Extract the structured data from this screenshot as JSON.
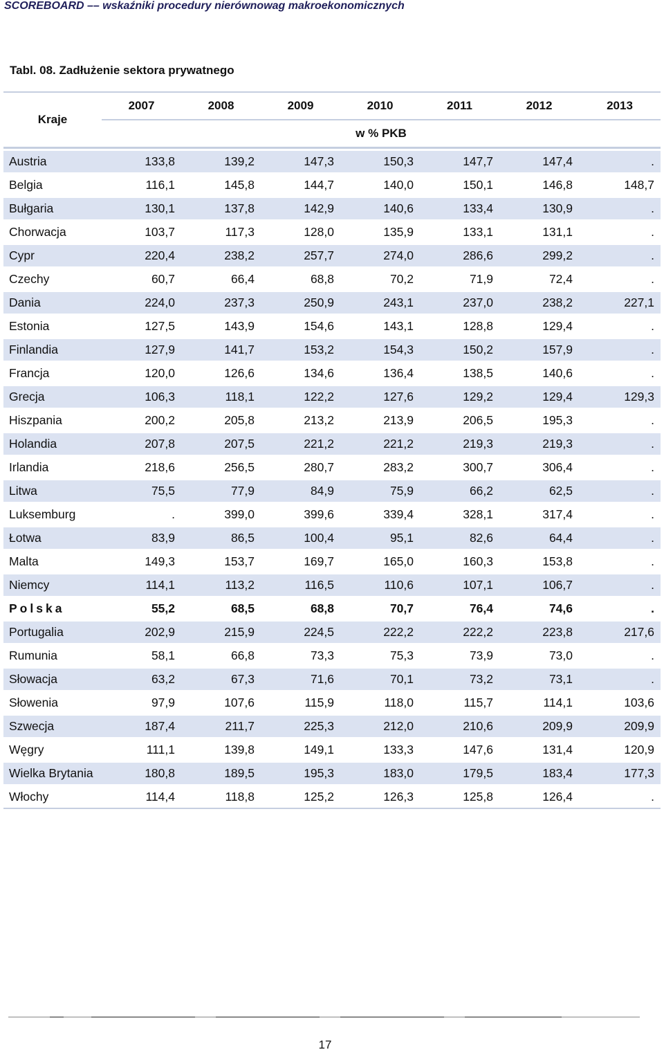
{
  "header": {
    "text": "SCOREBOARD –– wskaźniki procedury nierównowag makroekonomicznych"
  },
  "table": {
    "title": "Tabl. 08. Zadłużenie sektora prywatnego",
    "col_header_label": "Kraje",
    "unit": "w % PKB",
    "years": [
      "2007",
      "2008",
      "2009",
      "2010",
      "2011",
      "2012",
      "2013"
    ],
    "rows": [
      {
        "country": "Austria",
        "values": [
          "133,8",
          "139,2",
          "147,3",
          "150,3",
          "147,7",
          "147,4",
          "."
        ]
      },
      {
        "country": "Belgia",
        "values": [
          "116,1",
          "145,8",
          "144,7",
          "140,0",
          "150,1",
          "146,8",
          "148,7"
        ]
      },
      {
        "country": "Bułgaria",
        "values": [
          "130,1",
          "137,8",
          "142,9",
          "140,6",
          "133,4",
          "130,9",
          "."
        ]
      },
      {
        "country": "Chorwacja",
        "values": [
          "103,7",
          "117,3",
          "128,0",
          "135,9",
          "133,1",
          "131,1",
          "."
        ]
      },
      {
        "country": "Cypr",
        "values": [
          "220,4",
          "238,2",
          "257,7",
          "274,0",
          "286,6",
          "299,2",
          "."
        ]
      },
      {
        "country": "Czechy",
        "values": [
          "60,7",
          "66,4",
          "68,8",
          "70,2",
          "71,9",
          "72,4",
          "."
        ]
      },
      {
        "country": "Dania",
        "values": [
          "224,0",
          "237,3",
          "250,9",
          "243,1",
          "237,0",
          "238,2",
          "227,1"
        ]
      },
      {
        "country": "Estonia",
        "values": [
          "127,5",
          "143,9",
          "154,6",
          "143,1",
          "128,8",
          "129,4",
          "."
        ]
      },
      {
        "country": "Finlandia",
        "values": [
          "127,9",
          "141,7",
          "153,2",
          "154,3",
          "150,2",
          "157,9",
          "."
        ]
      },
      {
        "country": "Francja",
        "values": [
          "120,0",
          "126,6",
          "134,6",
          "136,4",
          "138,5",
          "140,6",
          "."
        ]
      },
      {
        "country": "Grecja",
        "values": [
          "106,3",
          "118,1",
          "122,2",
          "127,6",
          "129,2",
          "129,4",
          "129,3"
        ]
      },
      {
        "country": "Hiszpania",
        "values": [
          "200,2",
          "205,8",
          "213,2",
          "213,9",
          "206,5",
          "195,3",
          "."
        ]
      },
      {
        "country": "Holandia",
        "values": [
          "207,8",
          "207,5",
          "221,2",
          "221,2",
          "219,3",
          "219,3",
          "."
        ]
      },
      {
        "country": "Irlandia",
        "values": [
          "218,6",
          "256,5",
          "280,7",
          "283,2",
          "300,7",
          "306,4",
          "."
        ]
      },
      {
        "country": "Litwa",
        "values": [
          "75,5",
          "77,9",
          "84,9",
          "75,9",
          "66,2",
          "62,5",
          "."
        ]
      },
      {
        "country": "Luksemburg",
        "values": [
          ".",
          "399,0",
          "399,6",
          "339,4",
          "328,1",
          "317,4",
          "."
        ]
      },
      {
        "country": "Łotwa",
        "values": [
          "83,9",
          "86,5",
          "100,4",
          "95,1",
          "82,6",
          "64,4",
          "."
        ]
      },
      {
        "country": "Malta",
        "values": [
          "149,3",
          "153,7",
          "169,7",
          "165,0",
          "160,3",
          "153,8",
          "."
        ]
      },
      {
        "country": "Niemcy",
        "values": [
          "114,1",
          "113,2",
          "116,5",
          "110,6",
          "107,1",
          "106,7",
          "."
        ]
      },
      {
        "country": "Polska",
        "values": [
          "55,2",
          "68,5",
          "68,8",
          "70,7",
          "76,4",
          "74,6",
          "."
        ],
        "bold": true
      },
      {
        "country": "Portugalia",
        "values": [
          "202,9",
          "215,9",
          "224,5",
          "222,2",
          "222,2",
          "223,8",
          "217,6"
        ]
      },
      {
        "country": "Rumunia",
        "values": [
          "58,1",
          "66,8",
          "73,3",
          "75,3",
          "73,9",
          "73,0",
          "."
        ]
      },
      {
        "country": "Słowacja",
        "values": [
          "63,2",
          "67,3",
          "71,6",
          "70,1",
          "73,2",
          "73,1",
          "."
        ]
      },
      {
        "country": "Słowenia",
        "values": [
          "97,9",
          "107,6",
          "115,9",
          "118,0",
          "115,7",
          "114,1",
          "103,6"
        ]
      },
      {
        "country": "Szwecja",
        "values": [
          "187,4",
          "211,7",
          "225,3",
          "212,0",
          "210,6",
          "209,9",
          "209,9"
        ]
      },
      {
        "country": "Węgry",
        "values": [
          "111,1",
          "139,8",
          "149,1",
          "133,3",
          "147,6",
          "131,4",
          "120,9"
        ]
      },
      {
        "country": "Wielka Brytania",
        "values": [
          "180,8",
          "189,5",
          "195,3",
          "183,0",
          "179,5",
          "183,4",
          "177,3"
        ]
      },
      {
        "country": "Włochy",
        "values": [
          "114,4",
          "118,8",
          "125,2",
          "126,3",
          "125,8",
          "126,4",
          "."
        ]
      }
    ]
  },
  "footer": {
    "page_number": "17"
  }
}
